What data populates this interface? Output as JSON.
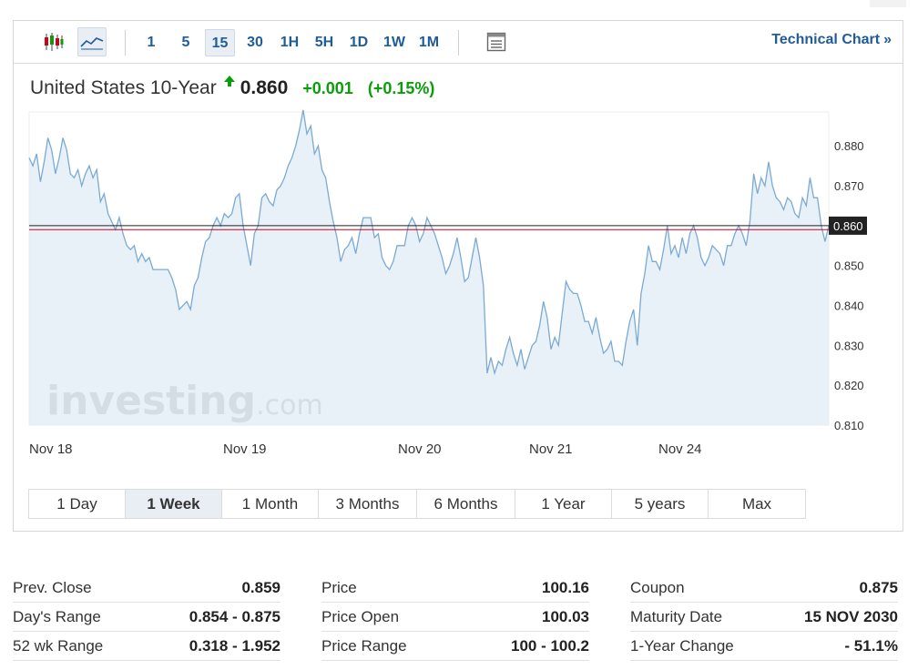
{
  "toolbar": {
    "chart_types": [
      "candlestick-icon",
      "line-chart-icon"
    ],
    "intervals": [
      "1",
      "5",
      "15",
      "30",
      "1H",
      "5H",
      "1D",
      "1W",
      "1M"
    ],
    "active_interval": "15",
    "layout_icon": "table-layout-icon",
    "tech_link_label": "Technical Chart",
    "tech_link_arrow": "»"
  },
  "instrument": {
    "name": "United States 10-Year",
    "last": "0.860",
    "change": "+0.001",
    "change_pct": "(+0.15%)",
    "direction_icon": "up-arrow-icon",
    "up_color": "#0a9e0a"
  },
  "watermark": {
    "brand": "investing",
    "suffix": ".com"
  },
  "chart_data": {
    "type": "area",
    "x_tick_labels": [
      "Nov 18",
      "Nov 19",
      "Nov 20",
      "Nov 21",
      "Nov 24"
    ],
    "y_tick_labels": [
      "0.880",
      "0.870",
      "0.860",
      "0.850",
      "0.840",
      "0.830",
      "0.820",
      "0.810"
    ],
    "ylim": [
      0.81,
      0.8885
    ],
    "current_value": 0.86,
    "current_label": "0.860",
    "reference_value": 0.859,
    "line_color": "#7aaad3",
    "fill_color": "#e4edf6",
    "current_line_color": "#222222",
    "reference_line_color": "#d0021b",
    "grid": false,
    "values": [
      0.877,
      0.875,
      0.878,
      0.871,
      0.876,
      0.882,
      0.879,
      0.873,
      0.877,
      0.882,
      0.879,
      0.873,
      0.872,
      0.874,
      0.87,
      0.873,
      0.875,
      0.872,
      0.874,
      0.866,
      0.868,
      0.863,
      0.861,
      0.859,
      0.862,
      0.858,
      0.855,
      0.854,
      0.855,
      0.851,
      0.853,
      0.851,
      0.852,
      0.849,
      0.849,
      0.849,
      0.849,
      0.849,
      0.847,
      0.844,
      0.839,
      0.84,
      0.841,
      0.839,
      0.845,
      0.847,
      0.852,
      0.856,
      0.857,
      0.86,
      0.862,
      0.86,
      0.863,
      0.862,
      0.863,
      0.867,
      0.868,
      0.86,
      0.855,
      0.85,
      0.858,
      0.86,
      0.867,
      0.868,
      0.866,
      0.865,
      0.869,
      0.87,
      0.872,
      0.875,
      0.877,
      0.88,
      0.884,
      0.889,
      0.883,
      0.885,
      0.878,
      0.88,
      0.874,
      0.872,
      0.866,
      0.861,
      0.857,
      0.851,
      0.854,
      0.855,
      0.857,
      0.853,
      0.858,
      0.862,
      0.862,
      0.862,
      0.857,
      0.858,
      0.852,
      0.85,
      0.849,
      0.851,
      0.855,
      0.855,
      0.855,
      0.86,
      0.862,
      0.86,
      0.856,
      0.858,
      0.862,
      0.86,
      0.858,
      0.855,
      0.852,
      0.848,
      0.85,
      0.853,
      0.857,
      0.852,
      0.846,
      0.847,
      0.852,
      0.857,
      0.852,
      0.845,
      0.823,
      0.827,
      0.823,
      0.826,
      0.825,
      0.829,
      0.832,
      0.828,
      0.825,
      0.829,
      0.824,
      0.827,
      0.83,
      0.831,
      0.835,
      0.841,
      0.837,
      0.829,
      0.832,
      0.83,
      0.838,
      0.846,
      0.844,
      0.843,
      0.843,
      0.84,
      0.836,
      0.836,
      0.833,
      0.837,
      0.832,
      0.828,
      0.829,
      0.831,
      0.826,
      0.826,
      0.825,
      0.831,
      0.836,
      0.839,
      0.83,
      0.843,
      0.848,
      0.855,
      0.851,
      0.851,
      0.849,
      0.854,
      0.86,
      0.853,
      0.855,
      0.852,
      0.857,
      0.853,
      0.858,
      0.86,
      0.857,
      0.852,
      0.85,
      0.852,
      0.855,
      0.854,
      0.853,
      0.85,
      0.855,
      0.855,
      0.858,
      0.86,
      0.858,
      0.855,
      0.861,
      0.873,
      0.868,
      0.872,
      0.87,
      0.876,
      0.87,
      0.867,
      0.866,
      0.864,
      0.867,
      0.866,
      0.863,
      0.862,
      0.867,
      0.865,
      0.872,
      0.867,
      0.867,
      0.86,
      0.856,
      0.86
    ]
  },
  "ranges": {
    "items": [
      "1 Day",
      "1 Week",
      "1 Month",
      "3 Months",
      "6 Months",
      "1 Year",
      "5 years",
      "Max"
    ],
    "active": "1 Week"
  },
  "stats": {
    "col1": [
      {
        "label": "Prev. Close",
        "value": "0.859"
      },
      {
        "label": "Day's Range",
        "value": "0.854 - 0.875"
      },
      {
        "label": "52 wk Range",
        "value": "0.318 - 1.952"
      }
    ],
    "col2": [
      {
        "label": "Price",
        "value": "100.16"
      },
      {
        "label": "Price Open",
        "value": "100.03"
      },
      {
        "label": "Price Range",
        "value": "100 - 100.2"
      }
    ],
    "col3": [
      {
        "label": "Coupon",
        "value": "0.875"
      },
      {
        "label": "Maturity Date",
        "value": "15 NOV 2030"
      },
      {
        "label": "1-Year Change",
        "value": "- 51.1%"
      }
    ]
  }
}
